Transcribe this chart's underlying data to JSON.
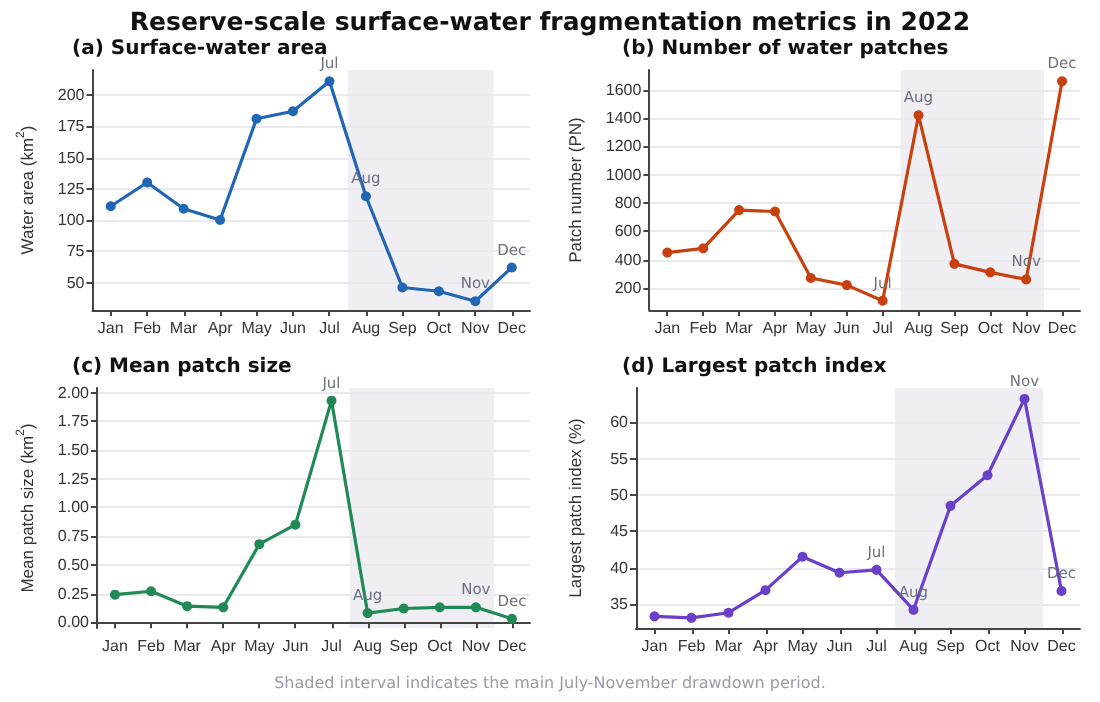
{
  "chart_data": [
    {
      "type": "line",
      "title": "Reserve-scale surface-water fragmentation metrics in 2022",
      "subtitle": "(a) Surface-water area",
      "ylabel": "Water area (km$^{2}$)",
      "categories": [
        "Jan",
        "Feb",
        "Mar",
        "Apr",
        "May",
        "Jun",
        "Jul",
        "Aug",
        "Sep",
        "Oct",
        "Nov",
        "Dec"
      ],
      "series": [
        {
          "color": "#2166b5",
          "values": [
            111,
            130,
            109,
            100,
            181,
            187,
            211,
            119,
            46,
            43,
            35,
            62
          ]
        }
      ],
      "ylim": [
        28,
        220
      ],
      "yticks": [
        50,
        75,
        100,
        125,
        150,
        175,
        200
      ],
      "grid": "y",
      "marker": "circle",
      "line_style": "solid",
      "bands": [
        {
          "axis": "x",
          "from": "Aug",
          "to": "Nov",
          "color": "#efeff3"
        }
      ],
      "annotations": [
        {
          "text": "Jul",
          "x": "Jul",
          "y": 211
        },
        {
          "text": "Aug",
          "x": "Aug",
          "y": 119
        },
        {
          "text": "Nov",
          "x": "Nov",
          "y": 35
        },
        {
          "text": "Dec",
          "x": "Dec",
          "y": 62
        }
      ]
    },
    {
      "type": "line",
      "title": "(b) Number of water patches",
      "ylabel": "Patch number (PN)",
      "categories": [
        "Jan",
        "Feb",
        "Mar",
        "Apr",
        "May",
        "Jun",
        "Jul",
        "Aug",
        "Sep",
        "Oct",
        "Nov",
        "Dec"
      ],
      "series": [
        {
          "color": "#c9400f",
          "values": [
            450,
            480,
            750,
            740,
            270,
            220,
            110,
            1420,
            370,
            310,
            260,
            1660
          ]
        }
      ],
      "ylim": [
        44,
        1740
      ],
      "yticks": [
        200,
        400,
        600,
        800,
        1000,
        1200,
        1400,
        1600
      ],
      "grid": "y",
      "marker": "circle",
      "line_style": "solid",
      "bands": [
        {
          "axis": "x",
          "from": "Aug",
          "to": "Nov",
          "color": "#efeff3"
        }
      ],
      "annotations": [
        {
          "text": "Jul",
          "x": "Jul",
          "y": 110
        },
        {
          "text": "Aug",
          "x": "Aug",
          "y": 1420
        },
        {
          "text": "Nov",
          "x": "Nov",
          "y": 260
        },
        {
          "text": "Dec",
          "x": "Dec",
          "y": 1660
        }
      ]
    },
    {
      "type": "line",
      "title": "(c) Mean patch size",
      "ylabel": "Mean patch size (km$^{2}$)",
      "categories": [
        "Jan",
        "Feb",
        "Mar",
        "Apr",
        "May",
        "Jun",
        "Jul",
        "Aug",
        "Sep",
        "Oct",
        "Nov",
        "Dec"
      ],
      "series": [
        {
          "color": "#1f8a55",
          "values": [
            0.24,
            0.27,
            0.14,
            0.13,
            0.68,
            0.85,
            1.93,
            0.08,
            0.12,
            0.13,
            0.13,
            0.03
          ]
        }
      ],
      "ylim": [
        -0.05,
        2.04
      ],
      "yticks": [
        {
          "value": 0,
          "label": "0.00"
        },
        {
          "value": 0.25,
          "label": "0.25"
        },
        {
          "value": 0.5,
          "label": "0.50"
        },
        {
          "value": 0.75,
          "label": "0.75"
        },
        {
          "value": 1,
          "label": "1.00"
        },
        {
          "value": 1.25,
          "label": "1.25"
        },
        {
          "value": 1.5,
          "label": "1.50"
        },
        {
          "value": 1.75,
          "label": "1.75"
        },
        {
          "value": 2,
          "label": "2.00"
        }
      ],
      "grid": "y",
      "marker": "circle",
      "line_style": "solid",
      "bands": [
        {
          "axis": "x",
          "from": "Aug",
          "to": "Nov",
          "color": "#efeff3"
        }
      ],
      "annotations": [
        {
          "text": "Jul",
          "x": "Jul",
          "y": 1.93
        },
        {
          "text": "Aug",
          "x": "Aug",
          "y": 0.08
        },
        {
          "text": "Nov",
          "x": "Nov",
          "y": 0.13
        },
        {
          "text": "Dec",
          "x": "Dec",
          "y": 0.03
        },
        "Shaded interval indicates the main July-November drawdown period."
      ]
    },
    {
      "type": "line",
      "title": "(d) Largest patch index",
      "ylabel": "Largest patch index (%)",
      "categories": [
        "Jan",
        "Feb",
        "Mar",
        "Apr",
        "May",
        "Jun",
        "Jul",
        "Aug",
        "Sep",
        "Oct",
        "Nov",
        "Dec"
      ],
      "series": [
        {
          "color": "#6a3fc9",
          "values": [
            33.3,
            33.1,
            33.8,
            36.9,
            41.5,
            39.3,
            39.7,
            34.2,
            48.5,
            52.7,
            63.2,
            36.8
          ]
        }
      ],
      "ylim": [
        31.7,
        64.7
      ],
      "yticks": [
        35,
        40,
        45,
        50,
        55,
        60
      ],
      "grid": "y",
      "marker": "circle",
      "line_style": "solid",
      "bands": [
        {
          "axis": "x",
          "from": "Aug",
          "to": "Nov",
          "color": "#efeff3"
        }
      ],
      "annotations": [
        {
          "text": "Jul",
          "x": "Jul",
          "y": 39.7
        },
        {
          "text": "Aug",
          "x": "Aug",
          "y": 34.2
        },
        {
          "text": "Nov",
          "x": "Nov",
          "y": 63.2
        },
        {
          "text": "Dec",
          "x": "Dec",
          "y": 36.8
        }
      ]
    }
  ]
}
